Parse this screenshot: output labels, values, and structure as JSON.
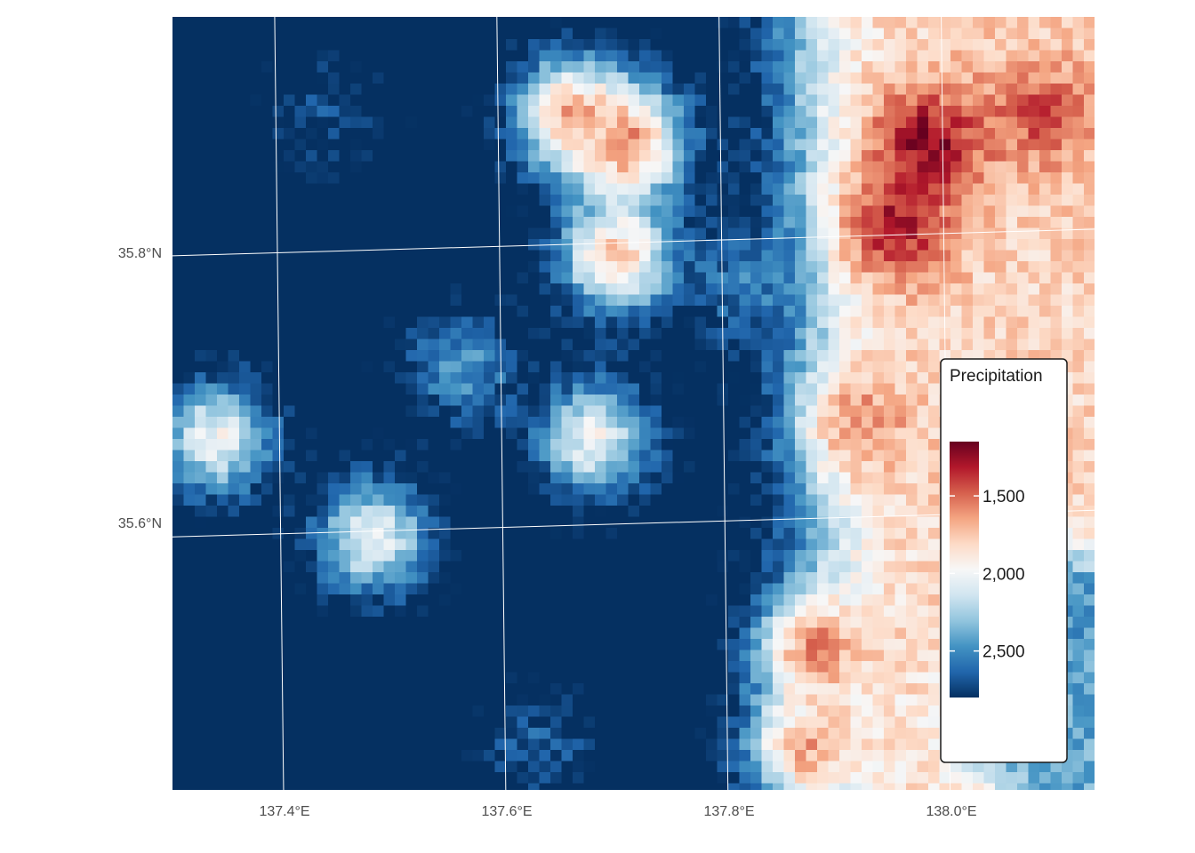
{
  "chart_data": {
    "type": "heatmap",
    "title": "",
    "xlabel": "",
    "ylabel": "",
    "x_ticks": [
      "137.4°E",
      "137.6°E",
      "137.8°E",
      "138.0°E"
    ],
    "x_tick_values": [
      137.4,
      137.6,
      137.8,
      138.0
    ],
    "y_ticks": [
      "35.6°N",
      "35.8°N"
    ],
    "y_tick_values": [
      35.6,
      35.8
    ],
    "xlim": [
      137.3,
      138.13
    ],
    "ylim": [
      35.42,
      35.97
    ],
    "grid": true,
    "legend": {
      "title": "Precipitation",
      "placement": "right-inside",
      "reversed": true,
      "range": [
        1150,
        2800
      ],
      "breaks": [
        1500,
        2000,
        2500
      ],
      "break_labels": [
        "1,500",
        "2,000",
        "2,500"
      ],
      "colors": [
        "#053061",
        "#2166ac",
        "#4393c3",
        "#92c5de",
        "#d1e5f0",
        "#f7f7f7",
        "#fddbc7",
        "#f4a582",
        "#d6604d",
        "#b2182b",
        "#67001f"
      ]
    },
    "field": {
      "description_of_regions": "east strip low precipitation (red), west region high precipitation (blue)",
      "base": 2250,
      "hotspots": [
        {
          "lon": 137.44,
          "lat": 35.9,
          "value": 2700
        },
        {
          "lon": 137.63,
          "lat": 35.45,
          "value": 2650
        },
        {
          "lon": 137.82,
          "lat": 35.78,
          "value": 2550
        },
        {
          "lon": 137.56,
          "lat": 35.72,
          "value": 2450
        },
        {
          "lon": 137.71,
          "lat": 35.88,
          "value": 1550
        },
        {
          "lon": 137.66,
          "lat": 35.9,
          "value": 1650
        },
        {
          "lon": 137.7,
          "lat": 35.8,
          "value": 1750
        },
        {
          "lon": 137.88,
          "lat": 35.52,
          "value": 1550
        },
        {
          "lon": 137.92,
          "lat": 35.68,
          "value": 1600
        },
        {
          "lon": 137.87,
          "lat": 35.45,
          "value": 1650
        },
        {
          "lon": 137.98,
          "lat": 35.88,
          "value": 1200
        },
        {
          "lon": 137.95,
          "lat": 35.82,
          "value": 1300
        },
        {
          "lon": 138.08,
          "lat": 35.9,
          "value": 1450
        },
        {
          "lon": 137.34,
          "lat": 35.67,
          "value": 2000
        },
        {
          "lon": 137.48,
          "lat": 35.6,
          "value": 2000
        },
        {
          "lon": 137.68,
          "lat": 35.67,
          "value": 2000
        },
        {
          "lon": 138.1,
          "lat": 35.55,
          "value": 2500
        },
        {
          "lon": 138.05,
          "lat": 35.46,
          "value": 2450
        }
      ]
    }
  }
}
